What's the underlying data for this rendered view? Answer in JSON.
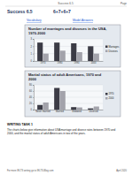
{
  "header": {
    "title": "Success 6.5",
    "score": "6+7+6+7",
    "right": "Page"
  },
  "links": [
    "Vocabulary",
    "Model Answers"
  ],
  "chart_data": [
    {
      "type": "bar",
      "title": "Number of marriages and divorces in the USA, 1970-2000",
      "categories": [
        "1970",
        "1980",
        "1990",
        "2000"
      ],
      "series": [
        {
          "name": "Marriages",
          "color": "#3b3b45",
          "values": [
            2.5,
            2.5,
            2.4,
            2
          ]
        },
        {
          "name": "Divorces",
          "color": "#a3a3ab",
          "values": [
            1,
            1.4,
            1.2,
            1
          ]
        }
      ],
      "ylim": [
        0,
        3
      ],
      "yticks": [
        0,
        1,
        2,
        3
      ],
      "grid": true,
      "legend": "right"
    },
    {
      "type": "bar",
      "title": "Marital status of adult Americans, 1970 and 2000",
      "categories": [
        "Never married",
        "Married",
        "Widowed",
        "Divorced"
      ],
      "series": [
        {
          "name": "1970",
          "color": "#3b3b45",
          "values": [
            15,
            70,
            8,
            4
          ]
        },
        {
          "name": "2000",
          "color": "#a3a3ab",
          "values": [
            23,
            60,
            7,
            10
          ]
        }
      ],
      "ylim": [
        0,
        80
      ],
      "yticks": [
        0,
        20,
        40,
        60,
        80
      ],
      "grid": true,
      "legend": "right"
    }
  ],
  "task": {
    "heading": "WRITING TASK 1",
    "text": "The charts below give information about USA marriage and divorce rates between 1970 and 2000, and the marital status of adult Americans in two of the years."
  },
  "footer": {
    "left": "For more IELTS writing go to IELTS-Blog.com",
    "right": "April 2020"
  }
}
